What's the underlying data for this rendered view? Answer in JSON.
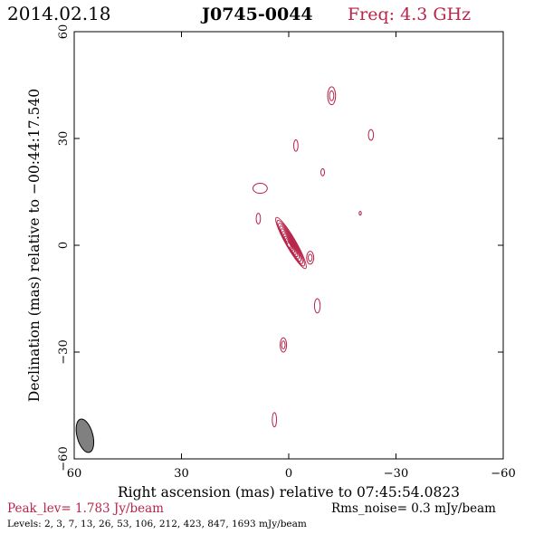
{
  "header": {
    "date": "2014.02.18",
    "source": "J0745-0044",
    "freq": "Freq: 4.3 GHz"
  },
  "colors": {
    "contour": "#b8244a",
    "axis": "#000000",
    "beam_fill": "#808080",
    "freq_text": "#b8244a",
    "peak_text": "#b8244a"
  },
  "footer": {
    "peak": "Peak_lev=  1.783 Jy/beam",
    "rms": "Rms_noise=  0.3 mJy/beam",
    "levels": "Levels:   2,   3,   7,   13,   26,   53,  106,  212,  423,  847,  1693  mJy/beam"
  },
  "chart_data": {
    "type": "contour",
    "xlabel": "Right ascension (mas) relative to 07:45:54.0823",
    "ylabel": "Declination (mas) relative to −00:44:17.540",
    "xlim": [
      60,
      -60
    ],
    "ylim": [
      -60,
      60
    ],
    "xticks": [
      60,
      30,
      0,
      -30,
      -60
    ],
    "xtick_labels": [
      "60",
      "30",
      "0",
      "−30",
      "−60"
    ],
    "yticks": [
      -60,
      -30,
      0,
      30,
      60
    ],
    "ytick_labels": [
      "−60",
      "−30",
      "0",
      "30",
      "60"
    ],
    "levels_mJy": [
      2,
      3,
      7,
      13,
      26,
      53,
      106,
      212,
      423,
      847,
      1693
    ],
    "peak_Jy_per_beam": 1.783,
    "rms_mJy_per_beam": 0.3,
    "core": {
      "ra": 0,
      "dec": 0,
      "pa_deg": 30,
      "level_count": 11
    },
    "features": [
      {
        "ra": -12,
        "dec": 42,
        "rx": 1.1,
        "ry": 2.5,
        "n": 2
      },
      {
        "ra": -23,
        "dec": 31,
        "rx": 0.7,
        "ry": 1.5,
        "n": 1
      },
      {
        "ra": -2,
        "dec": 28,
        "rx": 0.6,
        "ry": 1.6,
        "n": 1
      },
      {
        "ra": -9.5,
        "dec": 20.5,
        "rx": 0.5,
        "ry": 1.0,
        "n": 1
      },
      {
        "ra": 8,
        "dec": 16,
        "rx": 2.0,
        "ry": 1.4,
        "n": 1
      },
      {
        "ra": -20,
        "dec": 9,
        "rx": 0.3,
        "ry": 0.5,
        "n": 1
      },
      {
        "ra": 8.5,
        "dec": 7.5,
        "rx": 0.6,
        "ry": 1.5,
        "n": 1
      },
      {
        "ra": -6,
        "dec": -3.5,
        "rx": 1.0,
        "ry": 1.8,
        "n": 2
      },
      {
        "ra": -8,
        "dec": -17,
        "rx": 0.8,
        "ry": 2.0,
        "n": 1
      },
      {
        "ra": 1.5,
        "dec": -28,
        "rx": 0.9,
        "ry": 2.0,
        "n": 2
      },
      {
        "ra": 4,
        "dec": -49,
        "rx": 0.6,
        "ry": 2.0,
        "n": 1
      }
    ],
    "beam": {
      "ra": 57,
      "dec": -53.5,
      "major_mas": 9.6,
      "minor_mas": 4.4,
      "pa_deg": -15
    }
  }
}
